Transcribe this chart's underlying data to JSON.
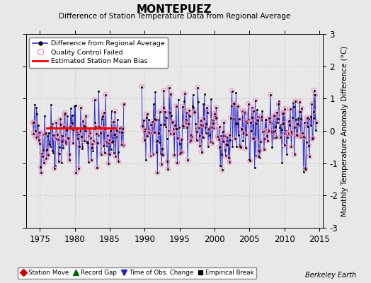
{
  "title": "MONTEPUEZ",
  "subtitle": "Difference of Station Temperature Data from Regional Average",
  "ylabel": "Monthly Temperature Anomaly Difference (°C)",
  "xlabel_ticks": [
    1975,
    1980,
    1985,
    1990,
    1995,
    2000,
    2005,
    2010,
    2015
  ],
  "ylim": [
    -3,
    3
  ],
  "xlim": [
    1973.0,
    2015.5
  ],
  "yticks": [
    -3,
    -2,
    -1,
    0,
    1,
    2,
    3
  ],
  "fig_bg_color": "#e8e8e8",
  "plot_bg_color": "#e8e8e8",
  "grid_color": "#c8c8c8",
  "bias_line_x": [
    1976.0,
    1985.8
  ],
  "bias_line_y": [
    0.08,
    0.08
  ],
  "gap_start": 1987.0,
  "gap_end": 1989.5,
  "data_start": 1974.0,
  "data_end": 2014.6,
  "berkeley_earth_text": "Berkeley Earth",
  "seed1": 42,
  "seed2": 99
}
